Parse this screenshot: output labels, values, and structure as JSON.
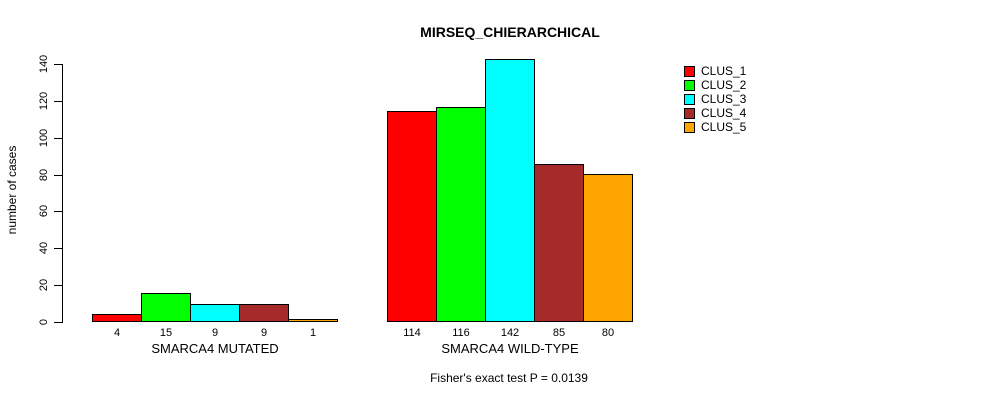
{
  "chart_data": {
    "type": "bar",
    "title": "MIRSEQ_CHIERARCHICAL",
    "ylabel": "number of cases",
    "ylim": [
      0,
      140
    ],
    "yticks": [
      0,
      20,
      40,
      60,
      80,
      100,
      120,
      140
    ],
    "grid": false,
    "legend_position": "right",
    "series_names": [
      "CLUS_1",
      "CLUS_2",
      "CLUS_3",
      "CLUS_4",
      "CLUS_5"
    ],
    "series_colors": [
      "#FF0000",
      "#00FF00",
      "#00FFFF",
      "#A52A2A",
      "#FFA500"
    ],
    "groups": [
      {
        "label": "SMARCA4 MUTATED",
        "values": [
          4,
          15,
          9,
          9,
          1
        ]
      },
      {
        "label": "SMARCA4 WILD-TYPE",
        "values": [
          114,
          116,
          142,
          85,
          80
        ]
      }
    ],
    "bar_value_labels_shown": true,
    "footnote": "Fisher's exact test P = 0.0139"
  }
}
